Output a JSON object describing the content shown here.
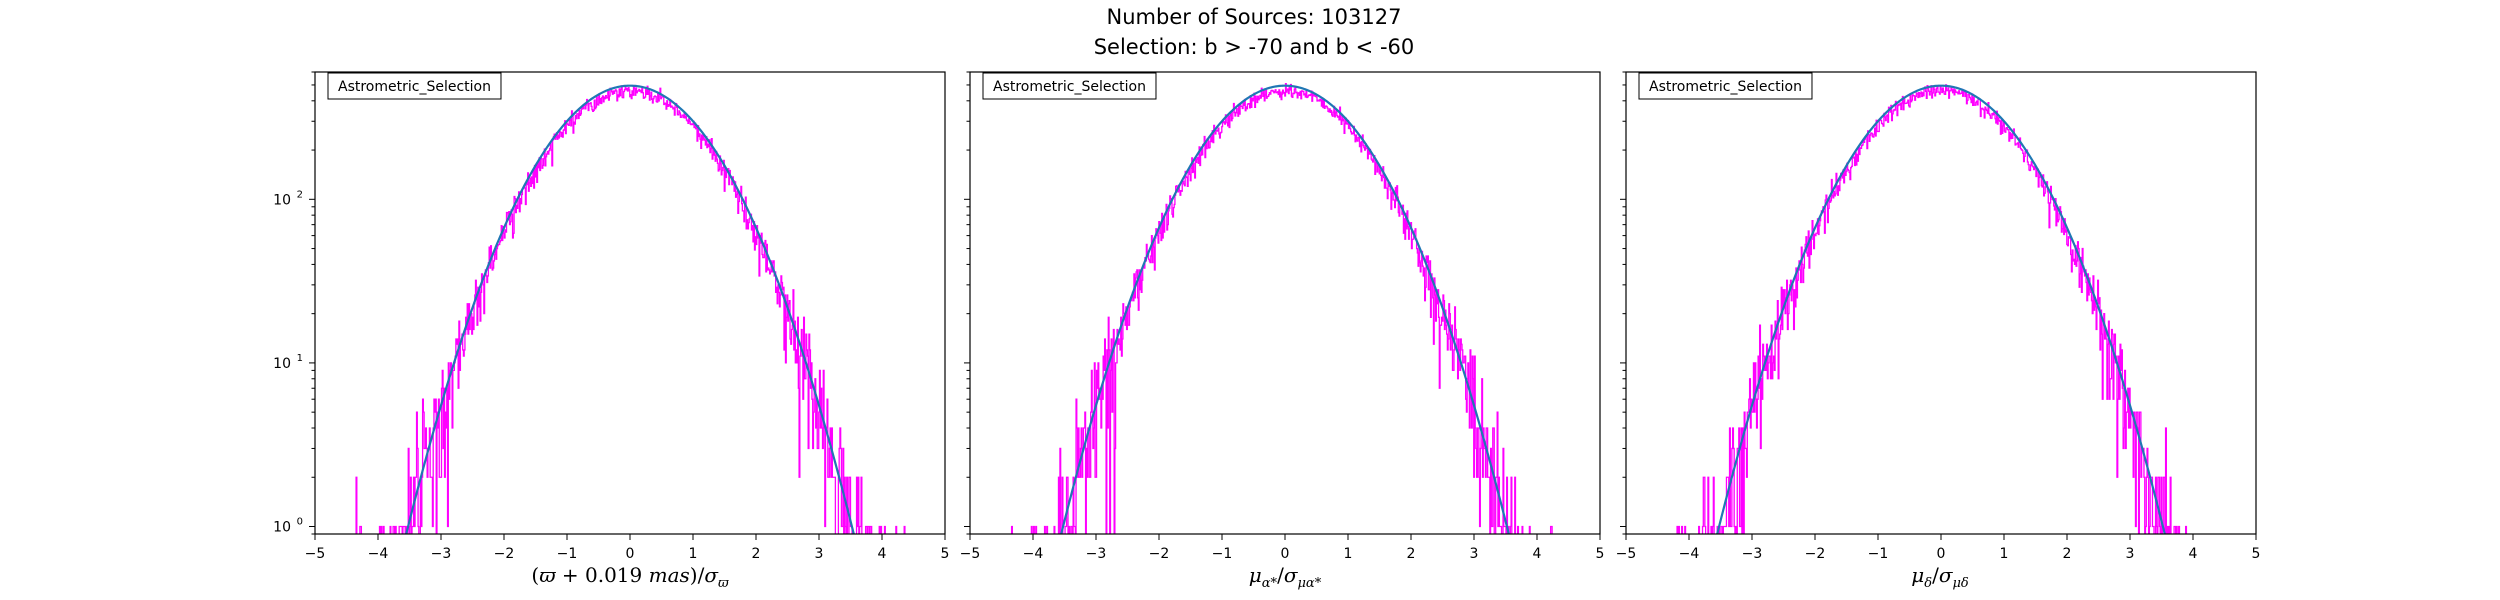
{
  "figure": {
    "title_line1": "Number of Sources: 103127",
    "title_line2": "Selection: b > -70 and b < -60"
  },
  "chart_data": [
    {
      "type": "line",
      "legend": "Astrometric_Selection",
      "legend_placement": "top-left",
      "xlabel": "(ϖ + 0.019 mas)/σϖ",
      "xlim": [
        -5,
        5
      ],
      "ylim": [
        0.9,
        600
      ],
      "yscale": "log",
      "xticks": [
        -5,
        -4,
        -3,
        -2,
        -1,
        0,
        1,
        2,
        3,
        4,
        5
      ],
      "yticks": [
        {
          "value": 1,
          "label_base": "10",
          "label_exp": "0"
        },
        {
          "value": 10,
          "label_base": "10",
          "label_exp": "1"
        },
        {
          "value": 100,
          "label_base": "10",
          "label_exp": "2"
        }
      ],
      "grid": false,
      "series": [
        {
          "kind": "histogram-step",
          "color": "#ff00ff",
          "count_peak": 460,
          "x_range": [
            -4.9,
            4.7
          ],
          "bins": 800
        },
        {
          "kind": "gaussian-fit",
          "color": "#1f77b4",
          "amplitude": 495,
          "mean": 0,
          "sigma": 1
        }
      ]
    },
    {
      "type": "line",
      "legend": "Astrometric_Selection",
      "legend_placement": "top-left",
      "xlabel": "μα*/σμα*",
      "xlim": [
        -5,
        5
      ],
      "ylim": [
        0.9,
        600
      ],
      "yscale": "log",
      "xticks": [
        -5,
        -4,
        -3,
        -2,
        -1,
        0,
        1,
        2,
        3,
        4,
        5
      ],
      "yticks": [
        {
          "value": 1,
          "label_base": "",
          "label_exp": ""
        },
        {
          "value": 10,
          "label_base": "",
          "label_exp": ""
        },
        {
          "value": 100,
          "label_base": "",
          "label_exp": ""
        }
      ],
      "grid": false,
      "series": [
        {
          "kind": "histogram-step",
          "color": "#ff00ff",
          "count_peak": 460,
          "x_range": [
            -4.7,
            4.6
          ],
          "bins": 800
        },
        {
          "kind": "gaussian-fit",
          "color": "#1f77b4",
          "amplitude": 495,
          "mean": 0,
          "sigma": 1
        }
      ]
    },
    {
      "type": "line",
      "legend": "Astrometric_Selection",
      "legend_placement": "top-left",
      "xlabel": "μδ/σμδ",
      "xlim": [
        -5,
        5
      ],
      "ylim": [
        0.9,
        600
      ],
      "yscale": "log",
      "xticks": [
        -5,
        -4,
        -3,
        -2,
        -1,
        0,
        1,
        2,
        3,
        4,
        5
      ],
      "yticks": [
        {
          "value": 1,
          "label_base": "",
          "label_exp": ""
        },
        {
          "value": 10,
          "label_base": "",
          "label_exp": ""
        },
        {
          "value": 100,
          "label_base": "",
          "label_exp": ""
        }
      ],
      "grid": false,
      "series": [
        {
          "kind": "histogram-step",
          "color": "#ff00ff",
          "count_peak": 460,
          "x_range": [
            -4.9,
            4.9
          ],
          "bins": 800
        },
        {
          "kind": "gaussian-fit",
          "color": "#1f77b4",
          "amplitude": 495,
          "mean": 0,
          "sigma": 1
        }
      ]
    }
  ]
}
